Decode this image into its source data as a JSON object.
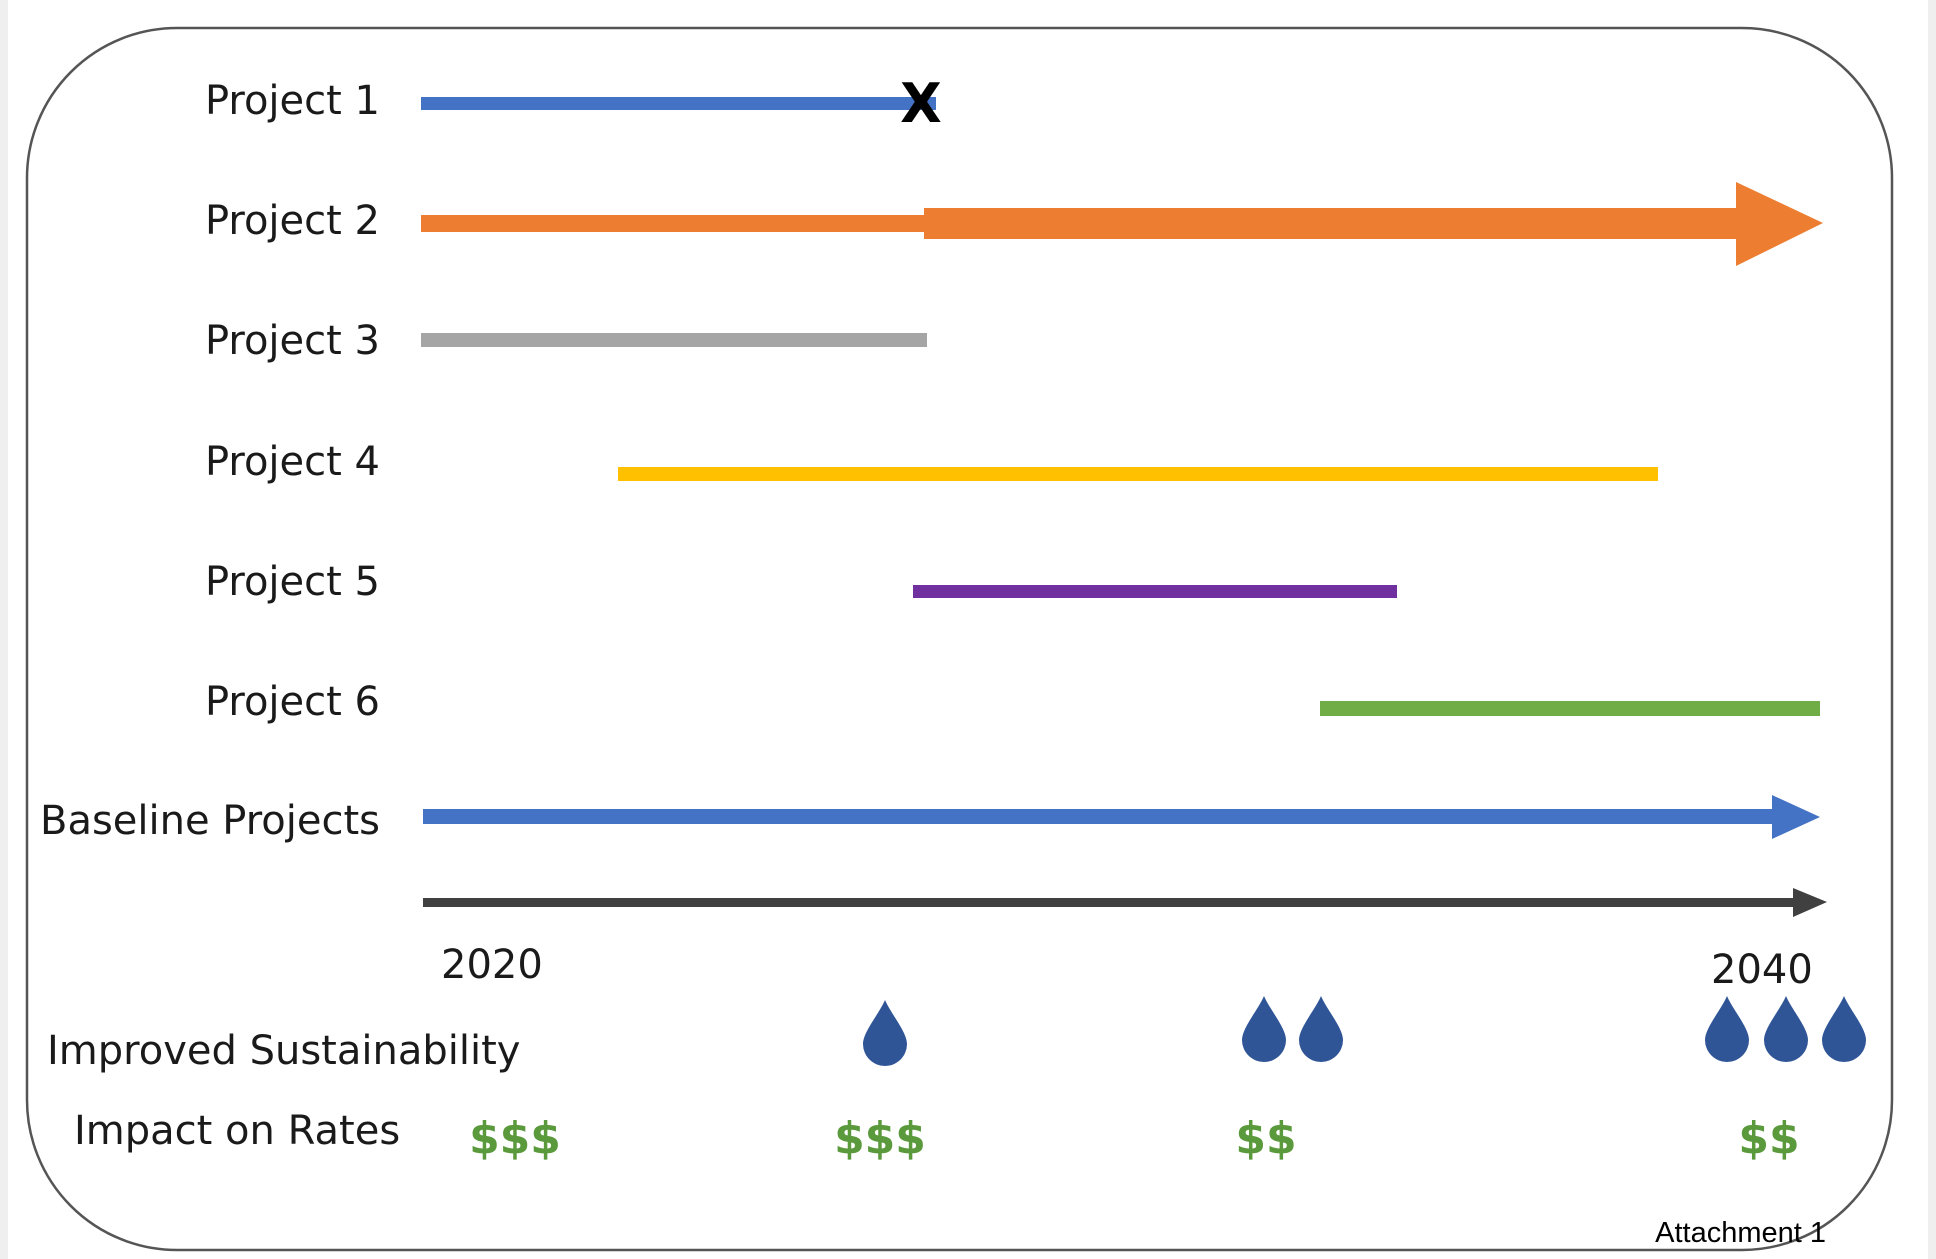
{
  "colors": {
    "frame": "#555555",
    "blue": "#4472c4",
    "orange": "#ed7d31",
    "gray": "#a5a5a5",
    "yellow": "#ffc000",
    "purple": "#7030a0",
    "green": "#70ad47",
    "axis": "#404040",
    "drop": "#2f5597",
    "rates": "#5b9a3c"
  },
  "projects": [
    {
      "label": "Project 1",
      "end_marker": "X"
    },
    {
      "label": "Project 2"
    },
    {
      "label": "Project 3"
    },
    {
      "label": "Project 4"
    },
    {
      "label": "Project 5"
    },
    {
      "label": "Project 6"
    },
    {
      "label": "Baseline Projects"
    }
  ],
  "timeline": {
    "start_label": "2020",
    "end_label": "2040"
  },
  "sustainability": {
    "label": "Improved Sustainability",
    "icon": "water-drop-icon",
    "groups": [
      1,
      2,
      3
    ]
  },
  "rates": {
    "label": "Impact on Rates",
    "values": [
      "$$$",
      "$$$",
      "$$",
      "$$"
    ]
  },
  "footer": {
    "attachment": "Attachment 1"
  }
}
